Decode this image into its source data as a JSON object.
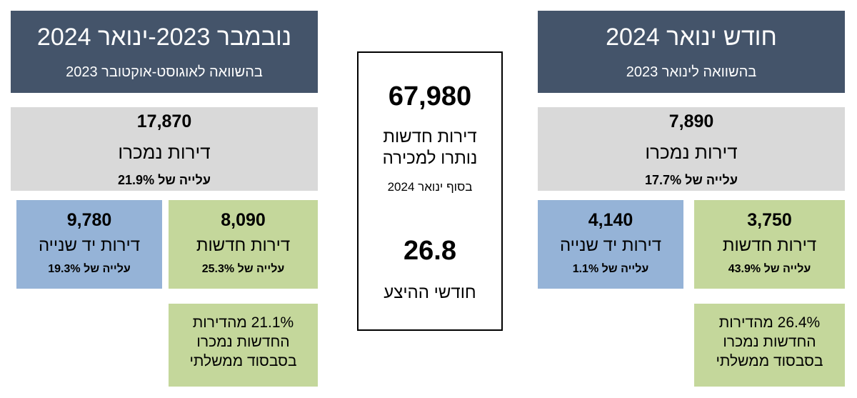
{
  "right_panel": {
    "header": {
      "title": "חודש ינואר 2024",
      "subtitle": "בהשוואה לינואר 2023"
    },
    "total": {
      "value": "7,890",
      "label": "דירות נמכרו",
      "change": "עלייה של 17.7%"
    },
    "second_hand": {
      "value": "4,140",
      "label": "דירות יד שנייה",
      "change": "עלייה של 1.1%"
    },
    "new": {
      "value": "3,750",
      "label": "דירות חדשות",
      "change": "עלייה של 43.9%"
    },
    "note": [
      "26.4% מהדירות",
      "החדשות נמכרו",
      "בסבסוד ממשלתי"
    ]
  },
  "center_panel": {
    "inventory": {
      "value": "67,980",
      "label_line1": "דירות חדשות",
      "label_line2": "נותרו למכירה",
      "date": "בסוף ינואר 2024"
    },
    "months": {
      "value": "26.8",
      "label": "חודשי ההיצע"
    }
  },
  "left_panel": {
    "header": {
      "title": "נובמבר 2023-ינואר 2024",
      "subtitle": "בהשוואה לאוגוסט-אוקטובר 2023"
    },
    "total": {
      "value": "17,870",
      "label": "דירות נמכרו",
      "change": "עלייה של 21.9%"
    },
    "second_hand": {
      "value": "9,780",
      "label": "דירות יד שנייה",
      "change": "עלייה של 19.3%"
    },
    "new": {
      "value": "8,090",
      "label": "דירות חדשות",
      "change": "עלייה של 25.3%"
    },
    "note": [
      "21.1% מהדירות",
      "החדשות נמכרו",
      "בסבסוד ממשלתי"
    ]
  },
  "colors": {
    "header": "#44546a",
    "gray": "#d9d9d9",
    "blue": "#95b3d7",
    "green": "#c4d79b"
  }
}
